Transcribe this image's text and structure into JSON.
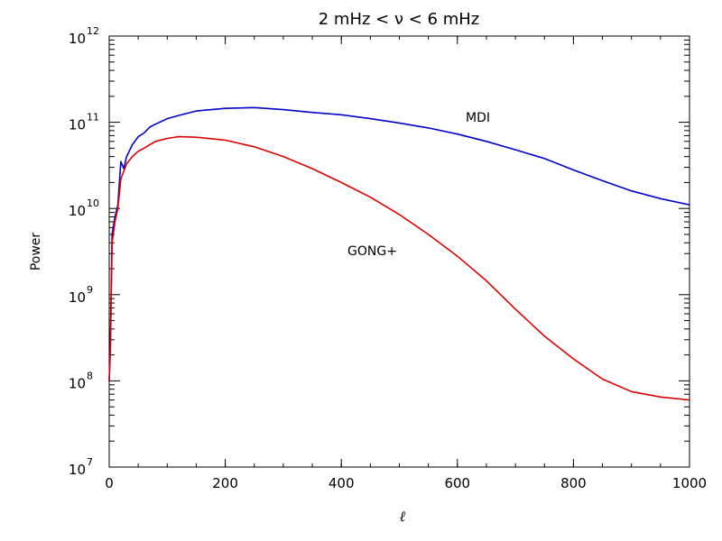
{
  "chart_data": {
    "type": "line",
    "title": "2 mHz < ν < 6 mHz",
    "xlabel": "ℓ",
    "ylabel": "Power",
    "xlim": [
      0,
      1000
    ],
    "ylim": [
      10000000.0,
      1000000000000.0
    ],
    "yscale": "log",
    "grid": false,
    "legend": "inline labels",
    "x_ticks": [
      "0",
      "200",
      "400",
      "600",
      "800",
      "1000"
    ],
    "y_ticks": [
      {
        "base": "10",
        "exp": "7"
      },
      {
        "base": "10",
        "exp": "8"
      },
      {
        "base": "10",
        "exp": "9"
      },
      {
        "base": "10",
        "exp": "10"
      },
      {
        "base": "10",
        "exp": "11"
      },
      {
        "base": "10",
        "exp": "12"
      }
    ],
    "x": [
      0,
      2,
      5,
      10,
      15,
      20,
      25,
      30,
      40,
      50,
      60,
      70,
      80,
      100,
      120,
      150,
      200,
      250,
      300,
      350,
      400,
      450,
      500,
      550,
      600,
      650,
      700,
      750,
      800,
      850,
      900,
      950,
      1000
    ],
    "series": [
      {
        "name": "MDI",
        "color": "#0000cc",
        "values": [
          100000000.0,
          300000000.0,
          5000000000.0,
          8000000000.0,
          11000000000.0,
          35000000000.0,
          29000000000.0,
          40000000000.0,
          55000000000.0,
          68000000000.0,
          75000000000.0,
          88000000000.0,
          95000000000.0,
          110000000000.0,
          120000000000.0,
          135000000000.0,
          145000000000.0,
          148000000000.0,
          140000000000.0,
          130000000000.0,
          122000000000.0,
          110000000000.0,
          98000000000.0,
          86000000000.0,
          73000000000.0,
          60000000000.0,
          48000000000.0,
          38000000000.0,
          28000000000.0,
          21000000000.0,
          16000000000.0,
          13000000000.0,
          11000000000.0
        ]
      },
      {
        "name": "GONG+",
        "color": "#dd0000",
        "values": [
          100000000.0,
          220000000.0,
          4000000000.0,
          7000000000.0,
          10000000000.0,
          22000000000.0,
          27000000000.0,
          33000000000.0,
          40000000000.0,
          46000000000.0,
          50000000000.0,
          55000000000.0,
          60000000000.0,
          65000000000.0,
          68000000000.0,
          67000000000.0,
          62000000000.0,
          52000000000.0,
          40000000000.0,
          29000000000.0,
          20000000000.0,
          13500000000.0,
          8500000000.0,
          5000000000.0,
          2800000000.0,
          1450000000.0,
          680000000.0,
          330000000.0,
          180000000.0,
          105000000.0,
          75000000.0,
          65000000.0,
          60000000.0
        ]
      }
    ]
  }
}
